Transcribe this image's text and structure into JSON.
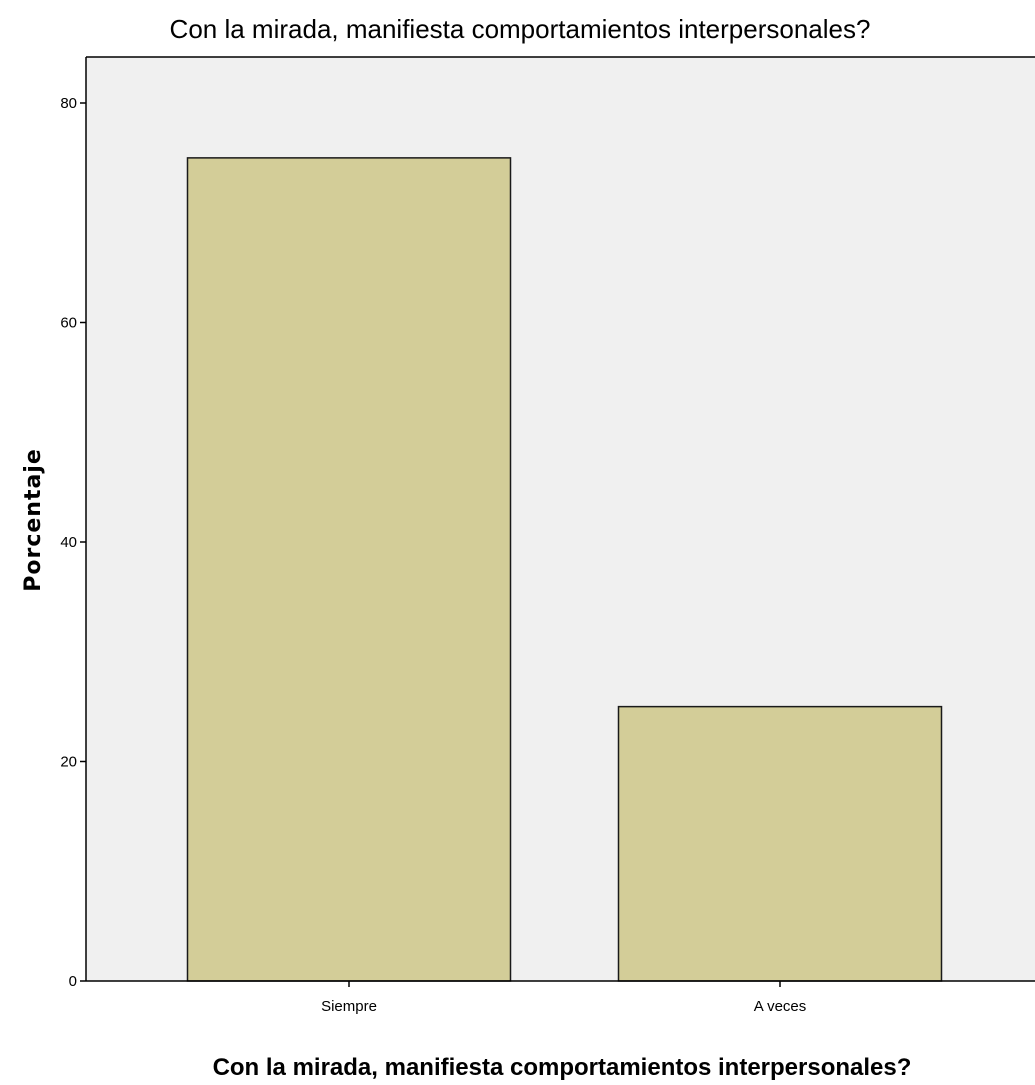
{
  "chart_data": {
    "type": "bar",
    "title": "Con la mirada, manifiesta comportamientos interpersonales?",
    "xlabel": "Con la mirada, manifiesta comportamientos interpersonales?",
    "ylabel": "Porcentaje",
    "categories": [
      "Siempre",
      "A veces"
    ],
    "values": [
      75,
      25
    ],
    "ylim": [
      0,
      80
    ],
    "yticks": [
      "0",
      "20",
      "40",
      "60",
      "80"
    ],
    "grid": false,
    "legend": "none",
    "colors": {
      "bar_fill": "#d3cd98",
      "bar_stroke": "#1a1a1a",
      "plot_background": "#f0f0f0"
    }
  }
}
